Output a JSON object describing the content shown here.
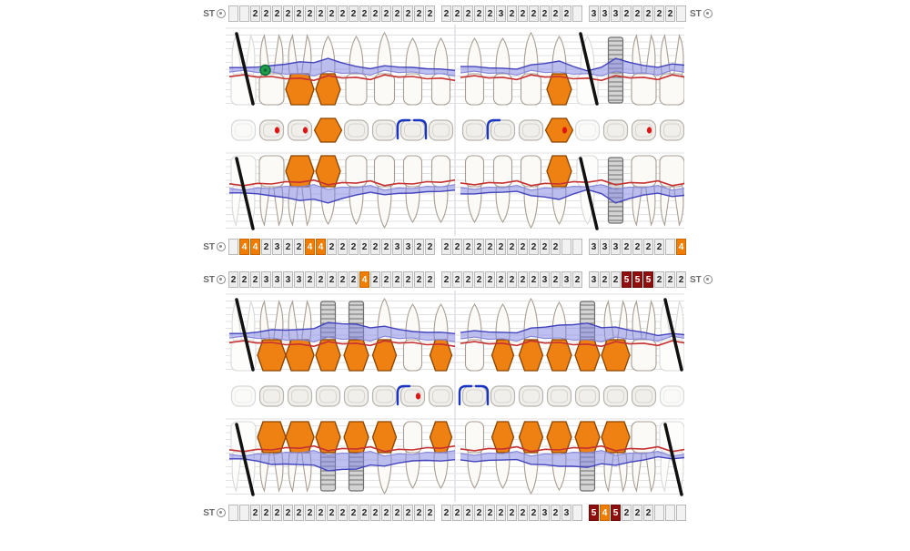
{
  "app": {
    "type": "periodontal-chart"
  },
  "labels": {
    "st": "ST"
  },
  "colors": {
    "cell_bg": "#ececec",
    "cell_border": "#b9b9b9",
    "hl_orange": "#ef7d00",
    "hl_darkred": "#8f0f0f",
    "grid": "#e2e2e2",
    "midline": "#d3cde0",
    "tooth_stroke": "#a79e93",
    "tooth_fill": "#fbfaf7",
    "crown_orange": "#ee8112",
    "crown_orange_stroke": "#8a4400",
    "implant_fill": "#d3d3d3",
    "implant_stroke": "#6f6f6f",
    "pocket_fill": "rgba(124,130,228,0.5)",
    "pocket_edge": "#4343bd",
    "margin_edge": "#8585d8",
    "gingiva_line": "#c63131",
    "missing_line": "#111111",
    "green_marker": "#1f9e4d",
    "bracket_blue": "#1a35c4",
    "occlusal_dot": "#dd1515",
    "ghost": "#d9d9d9"
  },
  "strips": [
    {
      "name": "upper-buccal",
      "left_label": "ST",
      "right_label": "ST",
      "segments": [
        [
          "",
          "",
          "2",
          "2",
          "2",
          "2",
          "2",
          "2",
          "2",
          "2",
          "2",
          "2",
          "2",
          "2",
          "2",
          "2",
          "2",
          "2",
          "2"
        ],
        [
          "2",
          "2",
          "2",
          "2",
          "2",
          "3",
          "2",
          "2",
          "2",
          "2",
          "2",
          "2",
          ""
        ],
        [
          "3",
          "3",
          "3",
          "2",
          "2",
          "2",
          "2",
          "2",
          ""
        ]
      ]
    },
    {
      "name": "upper-palatal",
      "left_label": "ST",
      "right_label": "",
      "segments": [
        [
          "",
          {
            "v": "4",
            "hl": "orange"
          },
          {
            "v": "4",
            "hl": "orange"
          },
          "2",
          "3",
          "2",
          "2",
          {
            "v": "4",
            "hl": "orange"
          },
          {
            "v": "4",
            "hl": "orange"
          },
          "2",
          "2",
          "2",
          "2",
          "2",
          "2",
          "3",
          "3",
          "2",
          "2"
        ],
        [
          "2",
          "2",
          "2",
          "2",
          "2",
          "2",
          "2",
          "2",
          "2",
          "2",
          "2",
          "",
          ""
        ],
        [
          "3",
          "3",
          "3",
          "2",
          "2",
          "2",
          "2",
          "",
          {
            "v": "4",
            "hl": "orange"
          }
        ]
      ]
    },
    {
      "name": "lower-lingual",
      "left_label": "ST",
      "right_label": "ST",
      "segments": [
        [
          "2",
          "2",
          "2",
          "3",
          "3",
          "3",
          "3",
          "2",
          "2",
          "2",
          "2",
          "2",
          {
            "v": "4",
            "hl": "orange"
          },
          "2",
          "2",
          "2",
          "2",
          "2",
          "2"
        ],
        [
          "2",
          "2",
          "2",
          "2",
          "2",
          "2",
          "2",
          "2",
          "2",
          "3",
          "2",
          "3",
          "2"
        ],
        [
          "3",
          "2",
          "2",
          {
            "v": "5",
            "hl": "darkred"
          },
          {
            "v": "5",
            "hl": "darkred"
          },
          {
            "v": "5",
            "hl": "darkred"
          },
          "2",
          "2",
          "2"
        ]
      ]
    },
    {
      "name": "lower-buccal",
      "left_label": "ST",
      "right_label": "",
      "segments": [
        [
          "",
          "",
          "2",
          "2",
          "2",
          "2",
          "2",
          "2",
          "2",
          "2",
          "2",
          "2",
          "2",
          "2",
          "2",
          "2",
          "2",
          "2",
          "2"
        ],
        [
          "2",
          "2",
          "2",
          "2",
          "2",
          "2",
          "2",
          "2",
          "2",
          "3",
          "2",
          "3",
          ""
        ],
        [
          {
            "v": "5",
            "hl": "darkred"
          },
          {
            "v": "4",
            "hl": "orange"
          },
          {
            "v": "5",
            "hl": "darkred"
          },
          "2",
          "2",
          "2",
          "",
          "",
          ""
        ]
      ]
    }
  ],
  "chart_data": {
    "type": "periodontal-tooth-chart",
    "upper": {
      "teeth": [
        {
          "status": "missing"
        },
        {
          "status": "normal",
          "marker": "green-circle"
        },
        {
          "status": "crown"
        },
        {
          "status": "crown"
        },
        {
          "status": "normal"
        },
        {
          "status": "normal"
        },
        {
          "status": "normal"
        },
        {
          "status": "normal"
        },
        {
          "status": "normal"
        },
        {
          "status": "normal"
        },
        {
          "status": "normal"
        },
        {
          "status": "crown",
          "shape": "hex"
        },
        {
          "status": "missing"
        },
        {
          "status": "implant"
        },
        {
          "status": "normal"
        },
        {
          "status": "normal"
        }
      ],
      "occlusal": [
        {
          "shape": "ghost"
        },
        {
          "shape": "plain",
          "dot": true
        },
        {
          "shape": "plain",
          "dot": true
        },
        {
          "shape": "hex"
        },
        {
          "shape": "plain"
        },
        {
          "shape": "plain"
        },
        {
          "shape": "plain",
          "bracket": "open-right"
        },
        {
          "shape": "plain",
          "bracket": "open-left"
        },
        {
          "shape": "plain"
        },
        {
          "shape": "plain",
          "bracket": "open-right"
        },
        {
          "shape": "plain"
        },
        {
          "shape": "hex",
          "dot": true
        },
        {
          "shape": "ghost"
        },
        {
          "shape": "plain"
        },
        {
          "shape": "plain",
          "dot": true
        },
        {
          "shape": "plain"
        }
      ],
      "pocket_buccal": [
        3,
        7,
        13,
        14,
        7,
        5,
        5,
        5,
        5,
        5,
        6,
        12,
        3,
        14,
        8,
        7
      ],
      "pocket_palatal": [
        3,
        8,
        15,
        15,
        8,
        5,
        5,
        5,
        5,
        5,
        6,
        12,
        3,
        15,
        8,
        7
      ]
    },
    "lower": {
      "teeth": [
        {
          "status": "missing"
        },
        {
          "status": "crown"
        },
        {
          "status": "crown"
        },
        {
          "status": "implant-crown"
        },
        {
          "status": "implant-crown"
        },
        {
          "status": "crown"
        },
        {
          "status": "normal"
        },
        {
          "status": "crown"
        },
        {
          "status": "normal"
        },
        {
          "status": "crown"
        },
        {
          "status": "crown"
        },
        {
          "status": "crown"
        },
        {
          "status": "implant-crown"
        },
        {
          "status": "crown"
        },
        {
          "status": "normal"
        },
        {
          "status": "missing"
        }
      ],
      "occlusal": [
        {
          "shape": "ghost"
        },
        {
          "shape": "plain"
        },
        {
          "shape": "plain"
        },
        {
          "shape": "plain"
        },
        {
          "shape": "plain"
        },
        {
          "shape": "plain"
        },
        {
          "shape": "plain",
          "bracket": "open-right",
          "dot": true
        },
        {
          "shape": "plain"
        },
        {
          "shape": "plain",
          "bracket": "open-right"
        },
        {
          "shape": "plain",
          "bracket": "open-left"
        },
        {
          "shape": "plain"
        },
        {
          "shape": "plain"
        },
        {
          "shape": "plain"
        },
        {
          "shape": "plain"
        },
        {
          "shape": "plain"
        },
        {
          "shape": "ghost"
        }
      ],
      "pocket_lingual": [
        3,
        9,
        11,
        16,
        16,
        11,
        7,
        8,
        7,
        7,
        9,
        14,
        18,
        11,
        7,
        3
      ],
      "pocket_buccal": [
        3,
        11,
        13,
        17,
        17,
        11,
        7,
        9,
        7,
        7,
        9,
        13,
        16,
        11,
        7,
        3
      ]
    }
  }
}
